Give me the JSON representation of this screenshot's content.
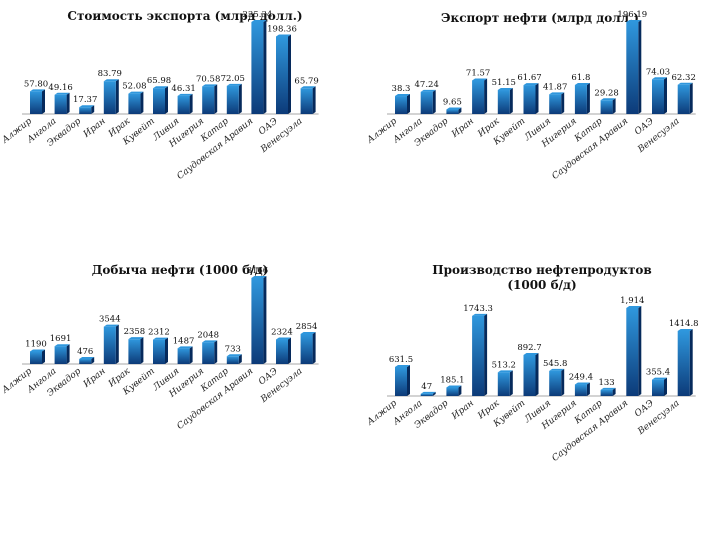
{
  "categories": [
    "Алжир",
    "Ангола",
    "Эквадор",
    "Иран",
    "Ирак",
    "Кувейт",
    "Ливия",
    "Нигерия",
    "Катар",
    "Саудовская Аравия",
    "ОАЭ",
    "Венесуэла"
  ],
  "colors": {
    "bar_top": "#2f97dd",
    "bar_bottom": "#0c3a78",
    "bar_side": "#062a5c",
    "axis": "#8a8a8a",
    "label": "#111111"
  },
  "chart_data": [
    {
      "type": "bar",
      "title": "Стоимость экспорта (млрд долл.)",
      "categories": [
        "Алжир",
        "Ангола",
        "Эквадор",
        "Иран",
        "Ирак",
        "Кувейт",
        "Ливия",
        "Нигерия",
        "Катар",
        "Саудовская Аравия",
        "ОАЭ",
        "Венесуэла"
      ],
      "values": [
        57.8,
        49.16,
        17.37,
        83.79,
        52.08,
        65.98,
        46.31,
        70.58,
        72.05,
        235.34,
        198.36,
        65.79
      ],
      "labels": [
        "57.80",
        "49.16",
        "17.37",
        "83.79",
        "52.08",
        "65.98",
        "46.31",
        "70.58",
        "72.05",
        "235.34",
        "198.36",
        "65.79"
      ],
      "ylim": [
        0,
        235.34
      ]
    },
    {
      "type": "bar",
      "title": "Экспорт нефти (млрд долл.)",
      "categories": [
        "Алжир",
        "Ангола",
        "Эквадор",
        "Иран",
        "Ирак",
        "Кувейт",
        "Ливия",
        "Нигерия",
        "Катар",
        "Саудовская Аравия",
        "ОАЭ",
        "Венесуэла"
      ],
      "values": [
        38.3,
        47.24,
        9.65,
        71.57,
        51.15,
        61.67,
        41.87,
        61.8,
        29.28,
        196.19,
        74.03,
        62.32
      ],
      "labels": [
        "38.3",
        "47.24",
        "9.65",
        "71.57",
        "51.15",
        "61.67",
        "41.87",
        "61.8",
        "29.28",
        "196.19",
        "74.03",
        "62.32"
      ],
      "ylim": [
        0,
        196.19
      ]
    },
    {
      "type": "bar",
      "title": "Добыча нефти (1000 б/д)",
      "categories": [
        "Алжир",
        "Ангола",
        "Эквадор",
        "Иран",
        "Ирак",
        "Кувейт",
        "Ливия",
        "Нигерия",
        "Катар",
        "Саудовская Аравия",
        "ОАЭ",
        "Венесуэла"
      ],
      "values": [
        1190,
        1691,
        476,
        3544,
        2358,
        2312,
        1487,
        2048,
        733,
        8166,
        2324,
        2854
      ],
      "labels": [
        "1190",
        "1691",
        "476",
        "3544",
        "2358",
        "2312",
        "1487",
        "2048",
        "733",
        "8166",
        "2324",
        "2854"
      ],
      "ylim": [
        0,
        8166
      ]
    },
    {
      "type": "bar",
      "title": "Производство нефтепродуктов (1000 б/д)",
      "categories": [
        "Алжир",
        "Ангола",
        "Эквадор",
        "Иран",
        "Ирак",
        "Кувейт",
        "Ливия",
        "Нигерия",
        "Катар",
        "Саудовская Аравия",
        "ОАЭ",
        "Венесуэла"
      ],
      "values": [
        631.5,
        47,
        185.1,
        1743.3,
        513.2,
        892.7,
        545.8,
        249.4,
        133,
        1914,
        355.4,
        1414.8
      ],
      "labels": [
        "631.5",
        "47",
        "185.1",
        "1743.3",
        "513.2",
        "892.7",
        "545.8",
        "249.4",
        "133",
        "1,914",
        "355.4",
        "1414.8"
      ],
      "ylim": [
        0,
        1914
      ]
    }
  ]
}
